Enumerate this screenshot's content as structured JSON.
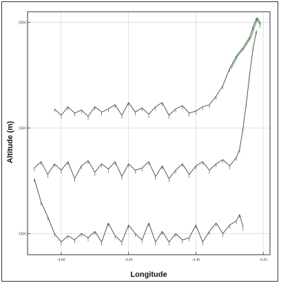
{
  "chart_data": {
    "type": "line",
    "title": "",
    "xlabel": "Longitude",
    "ylabel": "Altitude (m)",
    "x_ticks": [
      "-4.50",
      "-4.40",
      "-4.30",
      "-4.20"
    ],
    "y_ticks": [
      "2000",
      "1500",
      "1000"
    ],
    "xlim": [
      -4.55,
      -4.19
    ],
    "ylim": [
      900,
      2050
    ],
    "grid": true,
    "legend": "none",
    "colors": {
      "track": "#555555",
      "track_highlight": "#3d9a3d",
      "grid": "#d8d8d8",
      "axis": "#333333"
    },
    "series": [
      {
        "x": [
          -4.51,
          -4.5,
          -4.49,
          -4.48,
          -4.47,
          -4.46,
          -4.45,
          -4.44,
          -4.43,
          -4.42,
          -4.41,
          -4.4,
          -4.39,
          -4.38,
          -4.37,
          -4.36,
          -4.35,
          -4.34,
          -4.33,
          -4.32,
          -4.31,
          -4.3,
          -4.29,
          -4.28,
          -4.27,
          -4.26,
          -4.25,
          -4.24,
          -4.23,
          -4.22,
          -4.215,
          -4.21,
          -4.205
        ],
        "y": [
          1590,
          1560,
          1600,
          1570,
          1585,
          1555,
          1600,
          1575,
          1590,
          1610,
          1560,
          1620,
          1575,
          1595,
          1565,
          1600,
          1620,
          1560,
          1590,
          1605,
          1570,
          1580,
          1600,
          1610,
          1650,
          1700,
          1780,
          1840,
          1880,
          1930,
          1980,
          2020,
          1990
        ]
      },
      {
        "x": [
          -4.54,
          -4.53,
          -4.52,
          -4.51,
          -4.5,
          -4.49,
          -4.48,
          -4.47,
          -4.46,
          -4.45,
          -4.44,
          -4.43,
          -4.42,
          -4.41,
          -4.4,
          -4.39,
          -4.38,
          -4.37,
          -4.36,
          -4.35,
          -4.34,
          -4.33,
          -4.32,
          -4.31,
          -4.3,
          -4.29,
          -4.28,
          -4.27,
          -4.26,
          -4.25,
          -4.24,
          -4.235,
          -4.23,
          -4.225,
          -4.22,
          -4.215,
          -4.21
        ],
        "y": [
          1310,
          1340,
          1280,
          1330,
          1300,
          1340,
          1260,
          1320,
          1345,
          1290,
          1330,
          1305,
          1340,
          1270,
          1330,
          1300,
          1310,
          1340,
          1270,
          1320,
          1260,
          1300,
          1330,
          1280,
          1320,
          1340,
          1300,
          1330,
          1350,
          1320,
          1360,
          1400,
          1500,
          1620,
          1760,
          1880,
          1960
        ]
      },
      {
        "x": [
          -4.54,
          -4.53,
          -4.52,
          -4.51,
          -4.5,
          -4.49,
          -4.48,
          -4.47,
          -4.46,
          -4.45,
          -4.44,
          -4.43,
          -4.42,
          -4.41,
          -4.4,
          -4.39,
          -4.38,
          -4.37,
          -4.36,
          -4.35,
          -4.34,
          -4.33,
          -4.32,
          -4.31,
          -4.3,
          -4.29,
          -4.28,
          -4.27,
          -4.26,
          -4.25,
          -4.24,
          -4.235,
          -4.23
        ],
        "y": [
          1260,
          1150,
          1080,
          1000,
          960,
          990,
          970,
          1000,
          980,
          1010,
          960,
          1050,
          990,
          960,
          1040,
          1000,
          970,
          1050,
          960,
          1010,
          960,
          1000,
          970,
          980,
          1040,
          960,
          1010,
          1050,
          1000,
          1040,
          1060,
          1090,
          1030
        ]
      }
    ]
  }
}
